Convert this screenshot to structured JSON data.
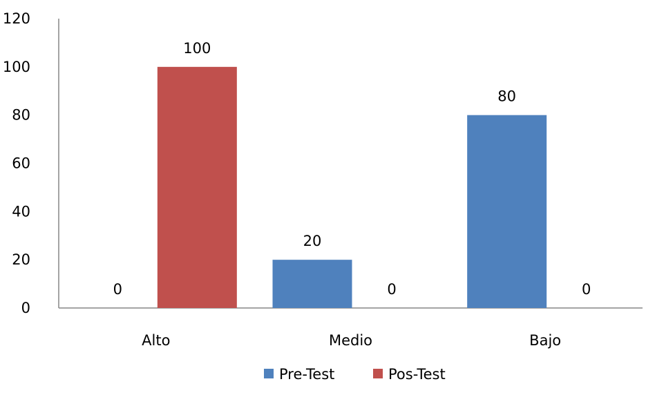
{
  "chart_data": {
    "type": "bar",
    "categories": [
      "Alto",
      "Medio",
      "Bajo"
    ],
    "series": [
      {
        "name": "Pre-Test",
        "values": [
          0,
          20,
          80
        ],
        "color": "#4F81BD"
      },
      {
        "name": "Pos-Test",
        "values": [
          100,
          0,
          0
        ],
        "color": "#C0504D"
      }
    ],
    "yticks": [
      0,
      20,
      40,
      60,
      80,
      100,
      120
    ],
    "ylim": [
      0,
      120
    ],
    "grid": false,
    "legend_position": "bottom"
  }
}
